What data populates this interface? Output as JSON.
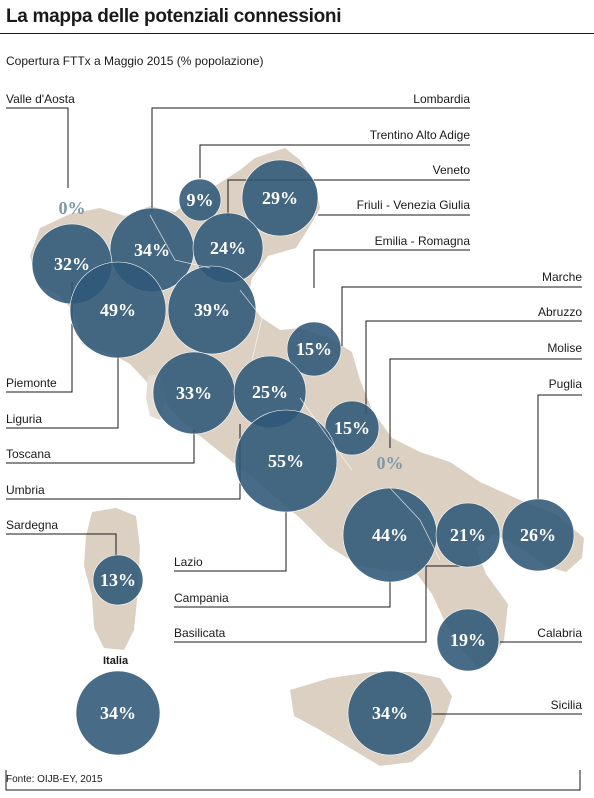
{
  "header": {
    "title": "La mappa delle potenziali connessioni",
    "subtitle": "Copertura FTTx a Maggio 2015 (% popolazione)"
  },
  "colors": {
    "land": "#dcd0c2",
    "bubble": "#2f5878",
    "bubble_zero": "#7f98a8",
    "line": "#1a1a1a"
  },
  "regions": [
    {
      "name": "Valle d'Aosta",
      "value": "0%"
    },
    {
      "name": "Lombardia",
      "value": "34%"
    },
    {
      "name": "Trentino Alto Adige",
      "value": "9%"
    },
    {
      "name": "Veneto",
      "value": "24%"
    },
    {
      "name": "Friuli - Venezia Giulia",
      "value": "29%"
    },
    {
      "name": "Emilia - Romagna",
      "value": "39%"
    },
    {
      "name": "Marche",
      "value": "15%"
    },
    {
      "name": "Abruzzo",
      "value": "15%"
    },
    {
      "name": "Molise",
      "value": "0%"
    },
    {
      "name": "Puglia",
      "value": "26%"
    },
    {
      "name": "Piemonte",
      "value": "32%"
    },
    {
      "name": "Liguria",
      "value": "49%"
    },
    {
      "name": "Toscana",
      "value": "33%"
    },
    {
      "name": "Umbria",
      "value": "25%"
    },
    {
      "name": "Sardegna",
      "value": "13%"
    },
    {
      "name": "Lazio",
      "value": "55%"
    },
    {
      "name": "Campania",
      "value": "44%"
    },
    {
      "name": "Basilicata",
      "value": "21%"
    },
    {
      "name": "Calabria",
      "value": "19%"
    },
    {
      "name": "Sicilia",
      "value": "34%"
    }
  ],
  "italia": {
    "label": "Italia",
    "value": "34%"
  },
  "source": "Fonte: OIJB-EY, 2015"
}
